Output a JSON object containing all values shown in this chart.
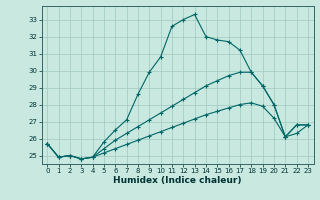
{
  "xlabel": "Humidex (Indice chaleur)",
  "background_color": "#c8e8e0",
  "grid_color": "#a0c8c0",
  "line_color": "#006666",
  "xlim": [
    -0.5,
    23.5
  ],
  "ylim": [
    24.5,
    33.8
  ],
  "yticks": [
    25,
    26,
    27,
    28,
    29,
    30,
    31,
    32,
    33
  ],
  "xticks": [
    0,
    1,
    2,
    3,
    4,
    5,
    6,
    7,
    8,
    9,
    10,
    11,
    12,
    13,
    14,
    15,
    16,
    17,
    18,
    19,
    20,
    21,
    22,
    23
  ],
  "line1_x": [
    0,
    1,
    2,
    3,
    4,
    5,
    6,
    7,
    8,
    9,
    10,
    11,
    12,
    13,
    14,
    15,
    16,
    17,
    18,
    19,
    20,
    21,
    22,
    23
  ],
  "line1_y": [
    25.7,
    24.9,
    25.0,
    24.8,
    24.9,
    25.8,
    26.5,
    27.1,
    28.6,
    29.9,
    30.8,
    32.6,
    33.0,
    33.3,
    32.0,
    31.8,
    31.7,
    31.2,
    29.9,
    29.1,
    28.0,
    26.1,
    26.8,
    26.8
  ],
  "line2_x": [
    0,
    1,
    2,
    3,
    4,
    5,
    6,
    7,
    8,
    9,
    10,
    11,
    12,
    13,
    14,
    15,
    16,
    17,
    18,
    19,
    20,
    21,
    22,
    23
  ],
  "line2_y": [
    25.7,
    24.9,
    25.0,
    24.8,
    24.9,
    25.4,
    25.9,
    26.3,
    26.7,
    27.1,
    27.5,
    27.9,
    28.3,
    28.7,
    29.1,
    29.4,
    29.7,
    29.9,
    29.9,
    29.1,
    28.0,
    26.1,
    26.8,
    26.8
  ],
  "line3_x": [
    0,
    1,
    2,
    3,
    4,
    5,
    6,
    7,
    8,
    9,
    10,
    11,
    12,
    13,
    14,
    15,
    16,
    17,
    18,
    19,
    20,
    21,
    22,
    23
  ],
  "line3_y": [
    25.7,
    24.9,
    25.0,
    24.8,
    24.9,
    25.15,
    25.4,
    25.65,
    25.9,
    26.15,
    26.4,
    26.65,
    26.9,
    27.15,
    27.4,
    27.6,
    27.8,
    28.0,
    28.1,
    27.9,
    27.2,
    26.1,
    26.3,
    26.8
  ]
}
